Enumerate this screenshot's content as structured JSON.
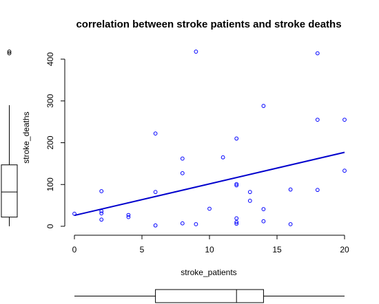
{
  "chart_data": {
    "type": "scatter",
    "title": "correlation between stroke patients and stroke deaths",
    "xlabel": "stroke_patients",
    "ylabel": "stroke_deaths",
    "xlim": [
      0,
      20
    ],
    "ylim": [
      0,
      400
    ],
    "x_ticks": [
      "0",
      "5",
      "10",
      "15",
      "20"
    ],
    "y_ticks": [
      "0",
      "100",
      "200",
      "300",
      "400"
    ],
    "grid": false,
    "points": [
      {
        "x": 0,
        "y": 30
      },
      {
        "x": 2,
        "y": 84
      },
      {
        "x": 2,
        "y": 36
      },
      {
        "x": 2,
        "y": 31
      },
      {
        "x": 2,
        "y": 16
      },
      {
        "x": 4,
        "y": 27
      },
      {
        "x": 4,
        "y": 22
      },
      {
        "x": 6,
        "y": 222
      },
      {
        "x": 6,
        "y": 82
      },
      {
        "x": 6,
        "y": 2
      },
      {
        "x": 8,
        "y": 162
      },
      {
        "x": 8,
        "y": 127
      },
      {
        "x": 8,
        "y": 7
      },
      {
        "x": 9,
        "y": 418
      },
      {
        "x": 9,
        "y": 5
      },
      {
        "x": 10,
        "y": 42
      },
      {
        "x": 11,
        "y": 165
      },
      {
        "x": 12,
        "y": 210
      },
      {
        "x": 12,
        "y": 101
      },
      {
        "x": 12,
        "y": 98
      },
      {
        "x": 12,
        "y": 19
      },
      {
        "x": 12,
        "y": 10
      },
      {
        "x": 12,
        "y": 6
      },
      {
        "x": 13,
        "y": 82
      },
      {
        "x": 13,
        "y": 61
      },
      {
        "x": 14,
        "y": 288
      },
      {
        "x": 14,
        "y": 41
      },
      {
        "x": 14,
        "y": 12
      },
      {
        "x": 16,
        "y": 88
      },
      {
        "x": 16,
        "y": 5
      },
      {
        "x": 18,
        "y": 414
      },
      {
        "x": 18,
        "y": 255
      },
      {
        "x": 18,
        "y": 87
      },
      {
        "x": 20,
        "y": 255
      },
      {
        "x": 20,
        "y": 133
      }
    ],
    "regression_line": {
      "x": [
        0,
        20
      ],
      "y": [
        26,
        177
      ]
    },
    "y_boxplot": {
      "whisker_low": 0,
      "q1": 22,
      "median": 82,
      "q3": 147,
      "whisker_high": 290,
      "outliers": [
        414,
        418
      ]
    },
    "x_boxplot": {
      "whisker_low": 0,
      "q1": 6,
      "median": 12,
      "q3": 14,
      "whisker_high": 20
    },
    "colors": {
      "points": "#0000ff",
      "line": "#0000cd",
      "axes": "#000000"
    }
  }
}
